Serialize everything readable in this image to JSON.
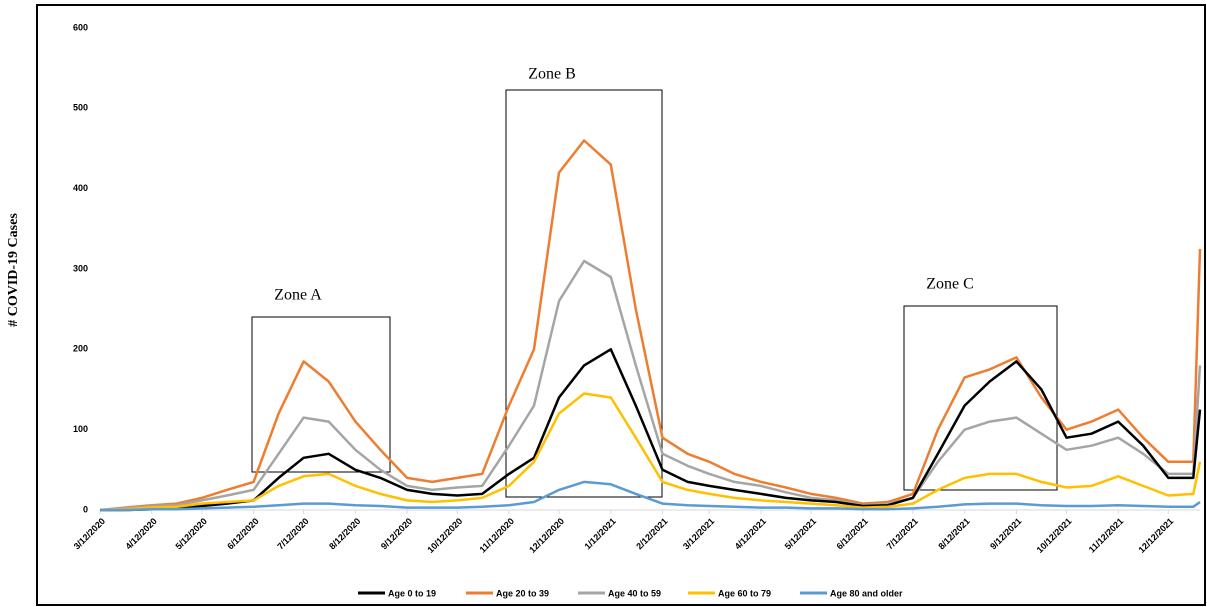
{
  "chart_data": {
    "type": "line",
    "ylabel": "# COVID-19 Cases",
    "annotations": [
      "Zone A",
      "Zone B",
      "Zone C"
    ],
    "x": [
      "3/12/2020",
      "3/27/2020",
      "4/12/2020",
      "4/27/2020",
      "5/12/2020",
      "5/27/2020",
      "6/12/2020",
      "6/27/2020",
      "7/12/2020",
      "7/27/2020",
      "8/12/2020",
      "8/27/2020",
      "9/12/2020",
      "9/27/2020",
      "10/12/2020",
      "10/27/2020",
      "11/12/2020",
      "11/27/2020",
      "12/12/2020",
      "12/27/2020",
      "1/12/2021",
      "1/27/2021",
      "2/12/2021",
      "2/27/2021",
      "3/12/2021",
      "3/27/2021",
      "4/12/2021",
      "4/27/2021",
      "5/12/2021",
      "5/27/2021",
      "6/12/2021",
      "6/27/2021",
      "7/12/2021",
      "7/27/2021",
      "8/12/2021",
      "8/27/2021",
      "9/12/2021",
      "9/27/2021",
      "10/12/2021",
      "10/27/2021",
      "11/12/2021",
      "11/27/2021",
      "12/12/2021",
      "12/27/2021",
      "12/31/2021"
    ],
    "xlim": [
      "3/12/2020",
      "12/31/2021"
    ],
    "xticks": [
      "3/12/2020",
      "4/12/2020",
      "5/12/2020",
      "6/12/2020",
      "7/12/2020",
      "8/12/2020",
      "9/12/2020",
      "10/12/2020",
      "11/12/2020",
      "12/12/2020",
      "1/12/2021",
      "2/12/2021",
      "3/12/2021",
      "4/12/2021",
      "5/12/2021",
      "6/12/2021",
      "7/12/2021",
      "8/12/2021",
      "9/12/2021",
      "10/12/2021",
      "11/12/2021",
      "12/12/2021"
    ],
    "ylim": [
      0,
      600
    ],
    "yticks": [
      0,
      100,
      200,
      300,
      400,
      500,
      600
    ],
    "grid": false,
    "series": [
      {
        "name": "Age 0 to 19",
        "color": "#000000",
        "values": [
          0,
          0,
          1,
          2,
          5,
          8,
          12,
          40,
          65,
          70,
          50,
          40,
          25,
          20,
          18,
          20,
          45,
          65,
          140,
          180,
          200,
          130,
          50,
          35,
          30,
          25,
          20,
          15,
          12,
          10,
          5,
          6,
          15,
          70,
          130,
          160,
          185,
          150,
          90,
          95,
          110,
          80,
          40,
          40,
          125
        ]
      },
      {
        "name": "Age 20 to 39",
        "color": "#ed7d31",
        "values": [
          0,
          3,
          6,
          8,
          15,
          25,
          35,
          120,
          185,
          160,
          110,
          75,
          40,
          35,
          40,
          45,
          130,
          200,
          420,
          460,
          430,
          250,
          90,
          70,
          60,
          45,
          35,
          28,
          20,
          15,
          8,
          10,
          20,
          100,
          165,
          175,
          190,
          140,
          100,
          110,
          125,
          90,
          60,
          60,
          325
        ]
      },
      {
        "name": "Age 40 to 59",
        "color": "#a5a5a5",
        "values": [
          0,
          2,
          5,
          6,
          12,
          18,
          25,
          70,
          115,
          110,
          75,
          50,
          30,
          25,
          28,
          30,
          80,
          130,
          260,
          310,
          290,
          180,
          70,
          55,
          45,
          35,
          30,
          22,
          15,
          12,
          6,
          8,
          15,
          60,
          100,
          110,
          115,
          95,
          75,
          80,
          90,
          70,
          45,
          45,
          180
        ]
      },
      {
        "name": "Age 60 to 79",
        "color": "#ffc000",
        "values": [
          0,
          1,
          3,
          4,
          8,
          10,
          12,
          30,
          42,
          45,
          30,
          20,
          12,
          10,
          12,
          15,
          30,
          60,
          120,
          145,
          140,
          90,
          35,
          25,
          20,
          15,
          12,
          10,
          8,
          6,
          3,
          4,
          8,
          25,
          40,
          45,
          45,
          35,
          28,
          30,
          42,
          30,
          18,
          20,
          60
        ]
      },
      {
        "name": "Age 80 and older",
        "color": "#5b9bd5",
        "values": [
          0,
          0,
          1,
          1,
          2,
          3,
          4,
          6,
          8,
          8,
          6,
          5,
          3,
          3,
          3,
          4,
          6,
          10,
          25,
          35,
          32,
          20,
          8,
          6,
          5,
          4,
          3,
          3,
          2,
          2,
          1,
          1,
          2,
          4,
          7,
          8,
          8,
          6,
          5,
          5,
          6,
          5,
          4,
          4,
          10
        ]
      }
    ]
  }
}
